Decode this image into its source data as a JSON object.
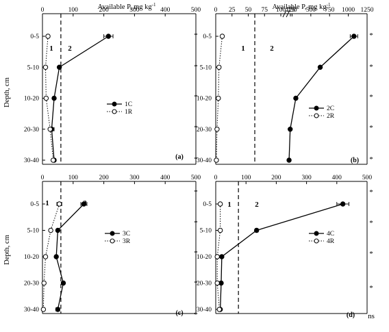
{
  "figure": {
    "top_axis_title": "Available P, mg kg",
    "top_axis_sup": "-1",
    "y_axis_title": "Depth, cm",
    "depth_labels": [
      "0-5",
      "5-10",
      "10-20",
      "20-30",
      "30-40"
    ]
  },
  "chart_data": [
    {
      "type": "line",
      "panel": "(a)",
      "x_range": [
        0,
        500
      ],
      "x_ticks": [
        "0",
        "100",
        "200",
        "300",
        "400",
        "500"
      ],
      "categories": [
        "0-5",
        "5-10",
        "10-20",
        "20-30",
        "30-40"
      ],
      "threshold_x": 60,
      "zone_labels": [
        "1",
        "2"
      ],
      "series": [
        {
          "name": "1C",
          "marker": "filled",
          "line": "solid",
          "values": [
            215,
            55,
            38,
            30,
            38
          ],
          "errors": [
            15,
            3,
            3,
            8,
            5
          ]
        },
        {
          "name": "1R",
          "marker": "open",
          "line": "dotted",
          "values": [
            18,
            10,
            12,
            25,
            35
          ],
          "errors": [
            2,
            1,
            1,
            3,
            4
          ]
        }
      ],
      "significance": [
        "*",
        "*",
        "*",
        "*",
        "*"
      ]
    },
    {
      "type": "line",
      "panel": "(b)",
      "x_range_break": "0-100 then 100-1250",
      "x_ticks": [
        "0",
        "25",
        "50",
        "75",
        "100",
        "125",
        "250",
        "500",
        "750",
        "1000",
        "1250"
      ],
      "categories": [
        "0-5",
        "5-10",
        "10-20",
        "20-30",
        "30-40"
      ],
      "threshold_x": 60,
      "zone_labels": [
        "1",
        "2"
      ],
      "series": [
        {
          "name": "2C",
          "marker": "filled",
          "line": "solid",
          "values": [
            1075,
            625,
            300,
            225,
            210
          ],
          "errors": [
            50,
            15,
            8,
            6,
            5
          ]
        },
        {
          "name": "2R",
          "marker": "open",
          "line": "dotted",
          "values": [
            10,
            5,
            4,
            2,
            1
          ],
          "errors": [
            1,
            1,
            1,
            0.5,
            0.5
          ]
        }
      ],
      "significance": [
        "*",
        "*",
        "*",
        "*",
        "*"
      ]
    },
    {
      "type": "line",
      "panel": "(c)",
      "x_range": [
        0,
        500
      ],
      "x_ticks": [
        "0",
        "100",
        "200",
        "300",
        "400",
        "500"
      ],
      "categories": [
        "0-5",
        "5-10",
        "10-20",
        "20-30",
        "30-40"
      ],
      "threshold_x": 60,
      "zone_labels": [
        "1",
        "2"
      ],
      "series": [
        {
          "name": "3C",
          "marker": "filled",
          "line": "solid",
          "values": [
            135,
            50,
            45,
            68,
            50
          ],
          "errors": [
            10,
            4,
            3,
            4,
            6
          ]
        },
        {
          "name": "3R",
          "marker": "open",
          "line": "dotted",
          "values": [
            55,
            27,
            10,
            5,
            3
          ],
          "errors": [
            8,
            3,
            1,
            1,
            1
          ]
        }
      ],
      "significance": [
        "*",
        "*",
        "*",
        "*",
        "*"
      ]
    },
    {
      "type": "line",
      "panel": "(d)",
      "x_range": [
        0,
        500
      ],
      "x_ticks": [
        "0",
        "100",
        "200",
        "300",
        "400",
        "500"
      ],
      "categories": [
        "0-5",
        "5-10",
        "10-20",
        "20-30",
        "30-40"
      ],
      "threshold_x": 75,
      "zone_labels": [
        "1",
        "2"
      ],
      "series": [
        {
          "name": "4C",
          "marker": "filled",
          "line": "solid",
          "values": [
            420,
            135,
            20,
            18,
            15
          ],
          "errors": [
            20,
            5,
            2,
            2,
            2
          ]
        },
        {
          "name": "4R",
          "marker": "open",
          "line": "dotted",
          "values": [
            15,
            15,
            5,
            5,
            12
          ],
          "errors": [
            2,
            2,
            1,
            1,
            2
          ]
        }
      ],
      "significance": [
        "*",
        "*",
        "*",
        "*",
        "ns"
      ]
    }
  ]
}
